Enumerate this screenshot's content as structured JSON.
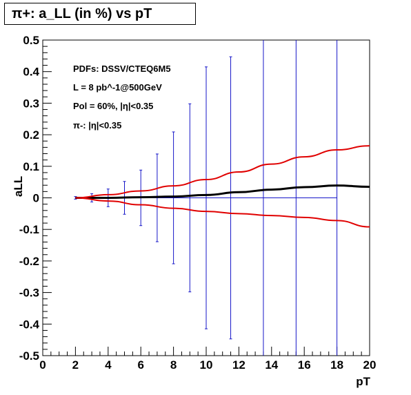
{
  "chart_data": {
    "type": "line",
    "title": "π+: a_LL (in %) vs pT",
    "xlabel": "pT",
    "ylabel": "aLL",
    "xlim": [
      0,
      20
    ],
    "ylim": [
      -0.5,
      0.5
    ],
    "x_ticks": [
      "0",
      "2",
      "4",
      "6",
      "8",
      "10",
      "12",
      "14",
      "16",
      "18",
      "20"
    ],
    "y_ticks": [
      "-0.5",
      "-0.4",
      "-0.3",
      "-0.2",
      "-0.1",
      "0",
      "0.1",
      "0.2",
      "0.3",
      "0.4",
      "0.5"
    ],
    "annotations": [
      "PDFs: DSSV/CTEQ6M5",
      "L = 8 pb^-1@500GeV",
      "Pol = 60%, |η|<0.35",
      "π-: |η|<0.35"
    ],
    "series": [
      {
        "color": "#000000",
        "x": [
          2,
          4,
          6,
          8,
          10,
          12,
          14,
          16,
          18,
          20
        ],
        "y": [
          0.0,
          0.0,
          0.002,
          0.004,
          0.009,
          0.018,
          0.026,
          0.034,
          0.039,
          0.035
        ]
      },
      {
        "color": "#e00000",
        "x": [
          2,
          4,
          6,
          8,
          10,
          12,
          14,
          16,
          18,
          20
        ],
        "y": [
          0.0,
          0.01,
          0.022,
          0.038,
          0.058,
          0.082,
          0.107,
          0.13,
          0.152,
          0.165
        ]
      },
      {
        "color": "#e00000",
        "x": [
          2,
          4,
          6,
          8,
          10,
          12,
          14,
          16,
          18,
          20
        ],
        "y": [
          0.0,
          -0.01,
          -0.022,
          -0.033,
          -0.043,
          -0.05,
          -0.056,
          -0.062,
          -0.072,
          -0.092
        ]
      },
      {
        "type": "errorbar",
        "color": "#1414c8",
        "x": [
          2,
          3,
          4,
          5,
          6,
          7,
          8,
          9,
          10,
          11.5,
          13.5,
          15.5,
          18
        ],
        "y": [
          0,
          0,
          0,
          0,
          0,
          0,
          0,
          0,
          0,
          0,
          0,
          0,
          0
        ],
        "err": [
          0.004,
          0.013,
          0.028,
          0.052,
          0.088,
          0.139,
          0.209,
          0.298,
          0.415,
          0.447,
          0.75,
          0.75,
          0.75
        ]
      }
    ]
  }
}
